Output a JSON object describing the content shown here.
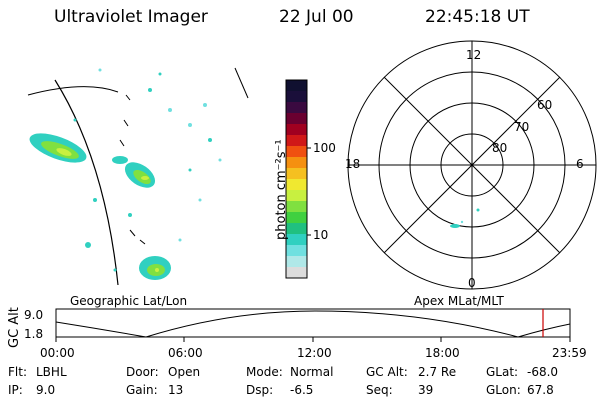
{
  "header": {
    "instrument": "Ultraviolet Imager",
    "date": "22 Jul 00",
    "time": "22:45:18 UT"
  },
  "colorbar": {
    "label": "photon cm⁻²s⁻¹",
    "ticks": [
      "100",
      "10"
    ],
    "colors": [
      "#101030",
      "#1a0f3a",
      "#3a0a40",
      "#6a0030",
      "#a00020",
      "#d01818",
      "#f05010",
      "#f59010",
      "#f5c020",
      "#f0e830",
      "#c8f040",
      "#80e040",
      "#40d040",
      "#20c080",
      "#30d0c0",
      "#70e0e0",
      "#b0e8e8",
      "#dcdcdc"
    ]
  },
  "map": {
    "label": "Geographic Lat/Lon"
  },
  "polar": {
    "label": "Apex MLat/MLT",
    "lat_labels": [
      "60",
      "70",
      "80"
    ],
    "mlt_labels": [
      "12",
      "18",
      "6",
      "0"
    ]
  },
  "timeline": {
    "axis_label": "GC Alt",
    "y_ticks": [
      "9.0",
      "1.8"
    ],
    "x_ticks": [
      "00:00",
      "06:00",
      "12:00",
      "18:00",
      "23:59"
    ],
    "marker_color": "#cc0000"
  },
  "info": {
    "flt_label": "Flt:",
    "flt_value": "LBHL",
    "ip_label": "IP:",
    "ip_value": "9.0",
    "door_label": "Door:",
    "door_value": "Open",
    "gain_label": "Gain:",
    "gain_value": "13",
    "mode_label": "Mode:",
    "mode_value": "Normal",
    "dsp_label": "Dsp:",
    "dsp_value": "-6.5",
    "gcalt_label": "GC Alt:",
    "gcalt_value": "2.7 Re",
    "seq_label": "Seq:",
    "seq_value": "39",
    "glat_label": "GLat:",
    "glat_value": "-68.0",
    "glon_label": "GLon:",
    "glon_value": "67.8"
  }
}
